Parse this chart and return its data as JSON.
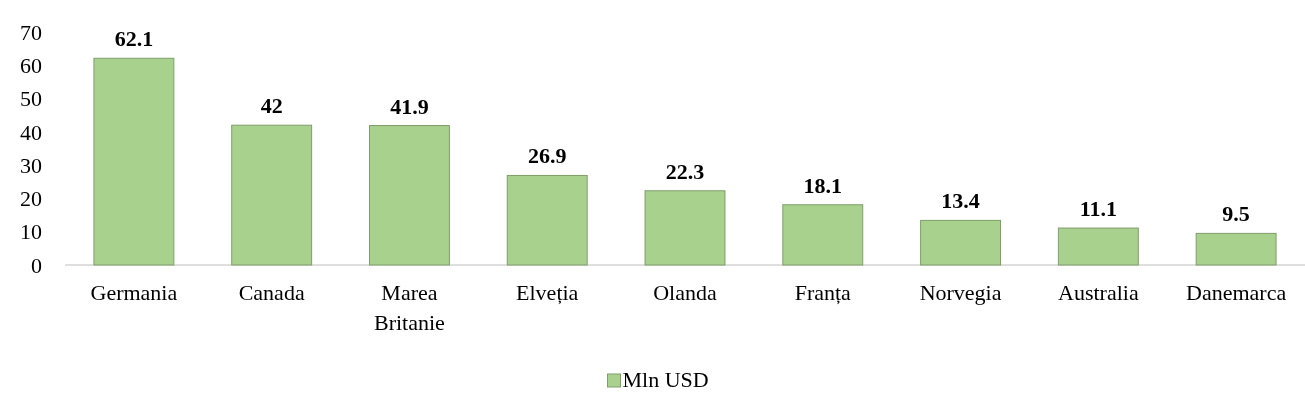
{
  "chart_data": {
    "type": "bar",
    "categories": [
      "Germania",
      "Canada",
      "Marea Britanie",
      "Elveția",
      "Olanda",
      "Franța",
      "Norvegia",
      "Australia",
      "Danemarca"
    ],
    "series": [
      {
        "name": "Mln USD",
        "color": "#a9d18e",
        "values": [
          62.1,
          42,
          41.9,
          26.9,
          22.3,
          18.1,
          13.4,
          11.1,
          9.5
        ]
      }
    ],
    "ylim": [
      0,
      70
    ],
    "yticks": [
      0,
      10,
      20,
      30,
      40,
      50,
      60,
      70
    ],
    "data_labels": true,
    "grid": false,
    "legend": "bottom"
  }
}
